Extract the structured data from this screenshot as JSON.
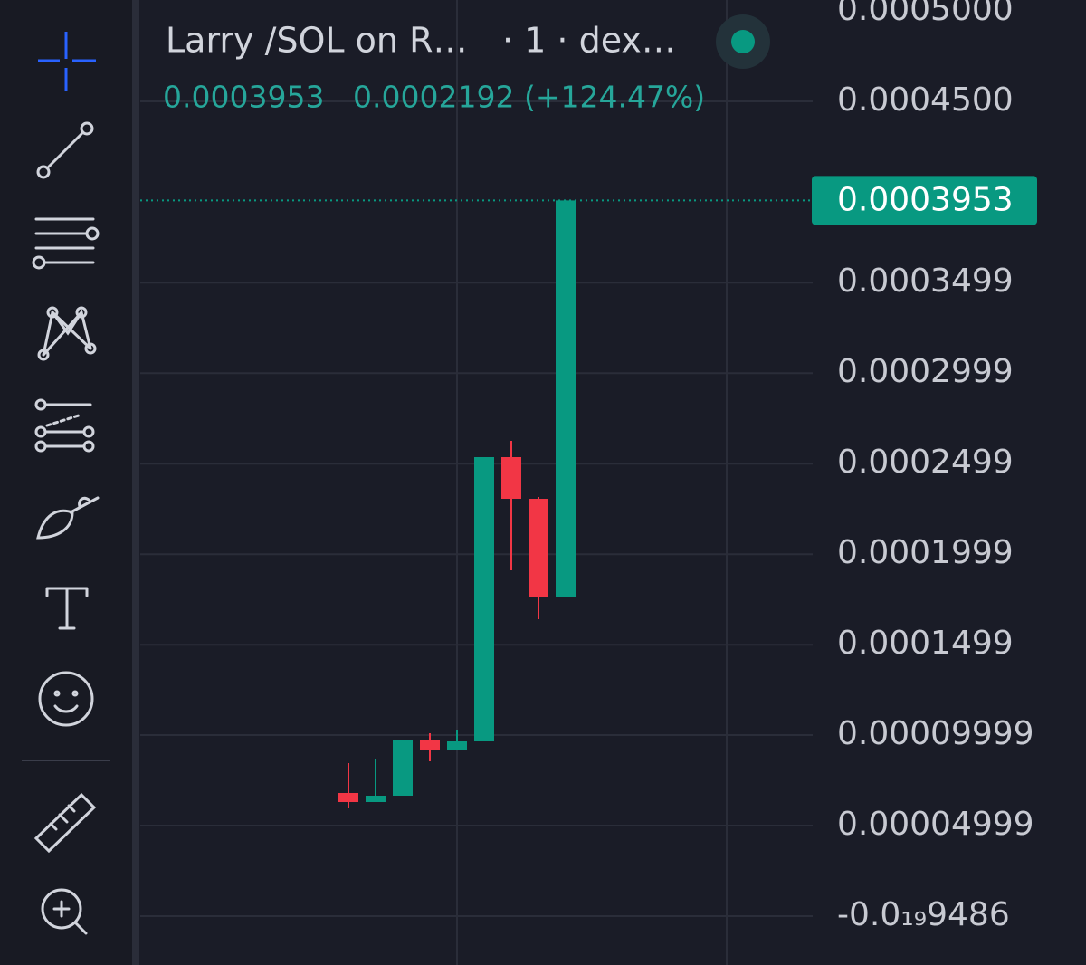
{
  "chart_data": {
    "type": "candlestick",
    "title": "Larry /SOL on R…",
    "subtitle": "· 1 · dex…",
    "change": "0.0002192 (+124.47%)",
    "categories": [
      null,
      null,
      null,
      null,
      null,
      null,
      null,
      null,
      null
    ],
    "open": [
      6.8e-05,
      6.3e-05,
      6.65e-05,
      9.75e-05,
      9.15e-05,
      9.65e-05,
      0.0002535,
      0.0002305,
      0.0001765
    ],
    "high": [
      8.45e-05,
      8.7e-05,
      9.75e-05,
      0.000101,
      0.000103,
      0.0002535,
      0.0002625,
      0.0002315,
      0.0003953
    ],
    "low": [
      5.95e-05,
      6.3e-05,
      6.65e-05,
      8.55e-05,
      9.15e-05,
      9.65e-05,
      0.000191,
      0.000164,
      0.0001765
    ],
    "close": [
      6.3e-05,
      6.65e-05,
      9.75e-05,
      9.15e-05,
      9.65e-05,
      0.0002535,
      0.0002305,
      0.0001765,
      0.0003953
    ],
    "up_color": "#089981",
    "down_color": "#f23645",
    "ylim": [
      -2.7e-05,
      0.000506
    ],
    "yticks": [
      {
        "value": 0.0005,
        "label": "0.0005000"
      },
      {
        "value": 0.00045,
        "label": "0.0004500"
      },
      0.0003499,
      0.0002999,
      0.0002499,
      0.0001999,
      0.0001499,
      9.999e-05,
      4.999e-05,
      {
        "value": -9.486e-24,
        "label": "-0.0₁₉9486"
      }
    ],
    "grid": true
  }
}
